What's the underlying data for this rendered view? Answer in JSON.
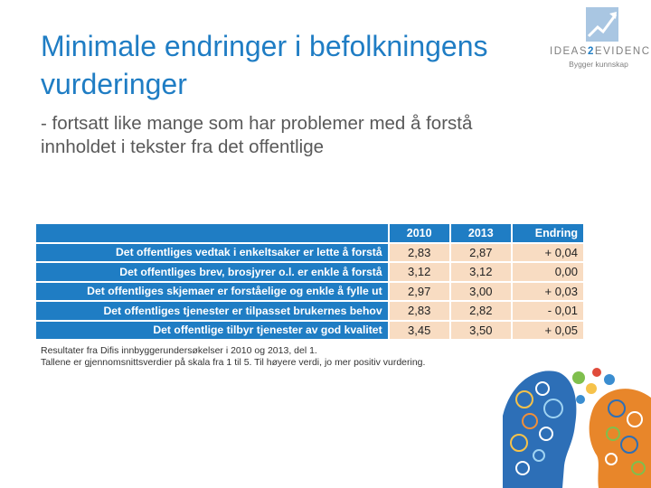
{
  "slide": {
    "title": "Minimale endringer i befolkningens vurderinger",
    "subtitle": "- fortsatt like mange som har problemer med å forstå innholdet i tekster fra det offentlige"
  },
  "logo": {
    "name_left": "IDEAS",
    "name_accent": "2",
    "name_right": "EVIDENCE",
    "tagline": "Bygger kunnskap"
  },
  "table": {
    "headers": [
      "",
      "2010",
      "2013",
      "Endring"
    ],
    "rows": [
      {
        "label": "Det offentliges vedtak i enkeltsaker er lette å forstå",
        "y2010": "2,83",
        "y2013": "2,87",
        "change": "+ 0,04"
      },
      {
        "label": "Det offentliges brev, brosjyrer o.l. er enkle å forstå",
        "y2010": "3,12",
        "y2013": "3,12",
        "change": "0,00"
      },
      {
        "label": "Det offentliges skjemaer er forståelige og enkle å fylle ut",
        "y2010": "2,97",
        "y2013": "3,00",
        "change": "+ 0,03"
      },
      {
        "label": "Det offentliges tjenester er tilpasset brukernes behov",
        "y2010": "2,83",
        "y2013": "2,82",
        "change": "- 0,01"
      },
      {
        "label": "Det offentlige tilbyr tjenester av god kvalitet",
        "y2010": "3,45",
        "y2013": "3,50",
        "change": "+ 0,05"
      }
    ]
  },
  "footnote": {
    "line1": "Resultater fra Difis innbyggerundersøkelser i 2010 og 2013, del 1.",
    "line2": "Tallene er gjennomsnittsverdier på skala fra 1 til 5. Til høyere verdi, jo mer positiv vurdering."
  },
  "colors": {
    "accent": "#1f7dc4",
    "cell": "#f8dcc2"
  }
}
